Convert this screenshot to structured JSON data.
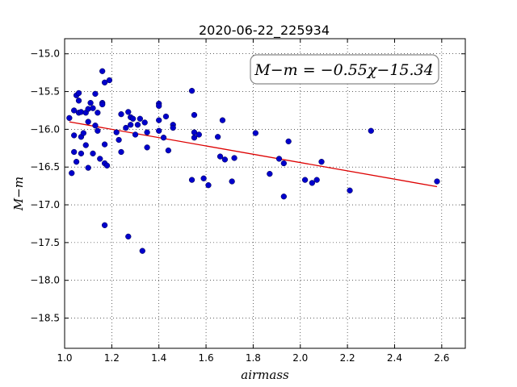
{
  "chart_data": {
    "type": "scatter",
    "title": "2020-06-22_225934",
    "xlabel": "airmass",
    "ylabel": "M−m",
    "xlim": [
      1.0,
      2.7
    ],
    "ylim": [
      -18.9,
      -14.8
    ],
    "y_inverted": true,
    "grid": true,
    "x_ticks": [
      1.0,
      1.2,
      1.4,
      1.6,
      1.8,
      2.0,
      2.2,
      2.4,
      2.6
    ],
    "x_tick_labels": [
      "1.0",
      "1.2",
      "1.4",
      "1.6",
      "1.8",
      "2.0",
      "2.2",
      "2.4",
      "2.6"
    ],
    "y_ticks": [
      -15.0,
      -15.5,
      -16.0,
      -16.5,
      -17.0,
      -17.5,
      -18.0,
      -18.5
    ],
    "y_tick_labels": [
      "−15.0",
      "−15.5",
      "−16.0",
      "−16.5",
      "−17.0",
      "−17.5",
      "−18.0",
      "−18.5"
    ],
    "annotation": "M−m = −0.55χ−15.34",
    "marker_color": "#0000cc",
    "fit_color": "#dd0000",
    "fit": {
      "slope": -0.55,
      "intercept": -15.34,
      "x_range": [
        1.02,
        2.58
      ]
    },
    "points": [
      {
        "x": 1.02,
        "y": -15.85
      },
      {
        "x": 1.03,
        "y": -16.58
      },
      {
        "x": 1.04,
        "y": -15.75
      },
      {
        "x": 1.04,
        "y": -16.08
      },
      {
        "x": 1.04,
        "y": -16.3
      },
      {
        "x": 1.05,
        "y": -15.55
      },
      {
        "x": 1.05,
        "y": -16.43
      },
      {
        "x": 1.06,
        "y": -15.52
      },
      {
        "x": 1.06,
        "y": -15.62
      },
      {
        "x": 1.06,
        "y": -15.78
      },
      {
        "x": 1.07,
        "y": -15.77
      },
      {
        "x": 1.07,
        "y": -16.1
      },
      {
        "x": 1.07,
        "y": -16.32
      },
      {
        "x": 1.08,
        "y": -16.05
      },
      {
        "x": 1.09,
        "y": -15.78
      },
      {
        "x": 1.09,
        "y": -16.21
      },
      {
        "x": 1.1,
        "y": -16.51
      },
      {
        "x": 1.1,
        "y": -15.73
      },
      {
        "x": 1.1,
        "y": -15.9
      },
      {
        "x": 1.11,
        "y": -15.65
      },
      {
        "x": 1.12,
        "y": -15.72
      },
      {
        "x": 1.12,
        "y": -16.32
      },
      {
        "x": 1.13,
        "y": -15.53
      },
      {
        "x": 1.13,
        "y": -15.95
      },
      {
        "x": 1.14,
        "y": -15.78
      },
      {
        "x": 1.14,
        "y": -16.02
      },
      {
        "x": 1.15,
        "y": -16.39
      },
      {
        "x": 1.16,
        "y": -15.23
      },
      {
        "x": 1.16,
        "y": -15.65
      },
      {
        "x": 1.16,
        "y": -15.67
      },
      {
        "x": 1.17,
        "y": -15.38
      },
      {
        "x": 1.17,
        "y": -16.2
      },
      {
        "x": 1.17,
        "y": -16.45
      },
      {
        "x": 1.17,
        "y": -17.27
      },
      {
        "x": 1.18,
        "y": -16.48
      },
      {
        "x": 1.19,
        "y": -15.35
      },
      {
        "x": 1.22,
        "y": -16.04
      },
      {
        "x": 1.23,
        "y": -16.14
      },
      {
        "x": 1.24,
        "y": -15.8
      },
      {
        "x": 1.24,
        "y": -16.3
      },
      {
        "x": 1.26,
        "y": -15.98
      },
      {
        "x": 1.27,
        "y": -15.77
      },
      {
        "x": 1.27,
        "y": -17.42
      },
      {
        "x": 1.28,
        "y": -15.84
      },
      {
        "x": 1.28,
        "y": -15.94
      },
      {
        "x": 1.29,
        "y": -15.86
      },
      {
        "x": 1.3,
        "y": -16.07
      },
      {
        "x": 1.31,
        "y": -15.94
      },
      {
        "x": 1.32,
        "y": -15.86
      },
      {
        "x": 1.33,
        "y": -17.61
      },
      {
        "x": 1.34,
        "y": -15.91
      },
      {
        "x": 1.35,
        "y": -16.04
      },
      {
        "x": 1.35,
        "y": -16.24
      },
      {
        "x": 1.4,
        "y": -15.66
      },
      {
        "x": 1.4,
        "y": -15.69
      },
      {
        "x": 1.4,
        "y": -15.88
      },
      {
        "x": 1.4,
        "y": -16.02
      },
      {
        "x": 1.42,
        "y": -16.11
      },
      {
        "x": 1.43,
        "y": -15.83
      },
      {
        "x": 1.44,
        "y": -16.28
      },
      {
        "x": 1.46,
        "y": -15.94
      },
      {
        "x": 1.46,
        "y": -15.98
      },
      {
        "x": 1.54,
        "y": -15.49
      },
      {
        "x": 1.54,
        "y": -16.67
      },
      {
        "x": 1.55,
        "y": -15.81
      },
      {
        "x": 1.55,
        "y": -16.04
      },
      {
        "x": 1.55,
        "y": -16.11
      },
      {
        "x": 1.57,
        "y": -16.07
      },
      {
        "x": 1.59,
        "y": -16.65
      },
      {
        "x": 1.61,
        "y": -16.74
      },
      {
        "x": 1.65,
        "y": -16.1
      },
      {
        "x": 1.66,
        "y": -16.36
      },
      {
        "x": 1.67,
        "y": -15.88
      },
      {
        "x": 1.68,
        "y": -16.4
      },
      {
        "x": 1.71,
        "y": -16.69
      },
      {
        "x": 1.72,
        "y": -16.38
      },
      {
        "x": 1.81,
        "y": -16.05
      },
      {
        "x": 1.87,
        "y": -16.59
      },
      {
        "x": 1.91,
        "y": -16.39
      },
      {
        "x": 1.93,
        "y": -16.45
      },
      {
        "x": 1.93,
        "y": -16.89
      },
      {
        "x": 1.95,
        "y": -16.16
      },
      {
        "x": 2.02,
        "y": -16.67
      },
      {
        "x": 2.05,
        "y": -16.71
      },
      {
        "x": 2.07,
        "y": -16.67
      },
      {
        "x": 2.09,
        "y": -16.43
      },
      {
        "x": 2.21,
        "y": -16.81
      },
      {
        "x": 2.3,
        "y": -16.02
      },
      {
        "x": 2.58,
        "y": -16.69
      }
    ]
  }
}
